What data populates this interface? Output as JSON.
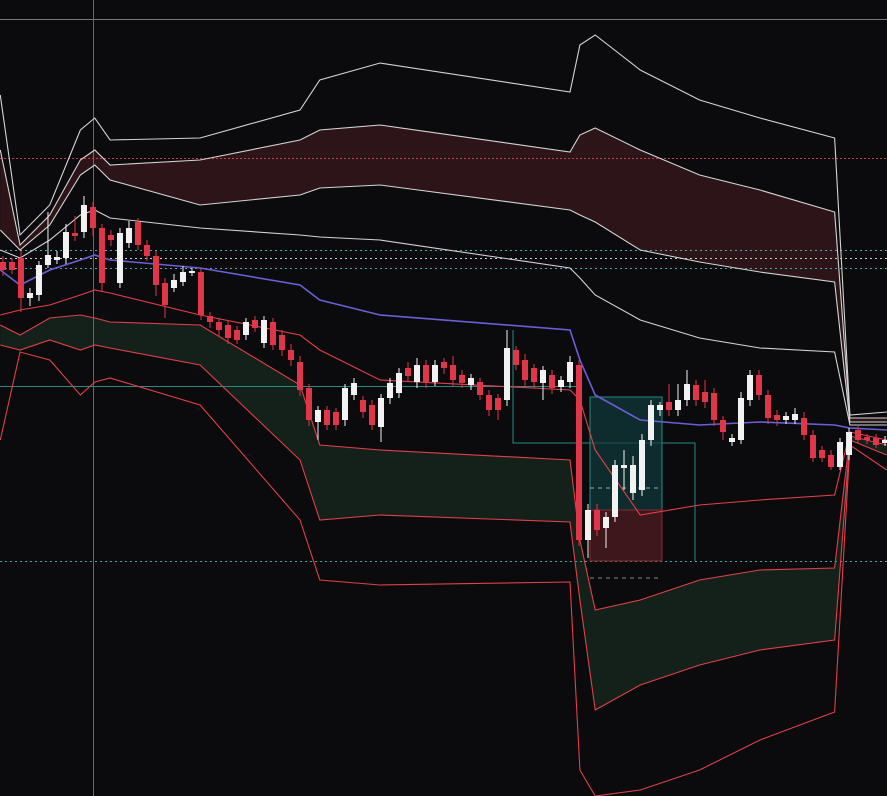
{
  "chart_data": {
    "type": "candlestick",
    "xlim": [
      -0.33,
      98.22
    ],
    "ylim": [
      0,
      796
    ],
    "up_color": "#f2f2f2",
    "down_color": "#e0364a",
    "open": [
      534,
      534,
      538,
      498,
      501,
      531,
      536,
      538,
      563,
      564,
      589,
      568,
      561,
      513,
      553,
      574,
      551,
      540,
      513,
      508,
      514,
      523,
      524,
      480,
      474,
      471,
      466,
      461,
      476,
      453,
      474,
      461,
      446,
      434,
      408,
      374,
      386,
      384,
      376,
      401,
      396,
      391,
      369,
      398,
      403,
      428,
      414,
      431,
      414,
      434,
      431,
      421,
      411,
      414,
      401,
      398,
      396,
      446,
      436,
      428,
      413,
      421,
      409,
      414,
      431,
      256,
      286,
      268,
      279,
      328,
      303,
      306,
      356,
      386,
      394,
      386,
      396,
      411,
      404,
      403,
      376,
      354,
      356,
      396,
      421,
      401,
      381,
      376,
      376,
      378,
      361,
      346,
      341,
      329,
      341,
      366,
      359,
      358,
      353
    ],
    "high": [
      540,
      538,
      545,
      508,
      535,
      584,
      545,
      572,
      580,
      600,
      594,
      572,
      566,
      568,
      575,
      578,
      556,
      545,
      518,
      522,
      530,
      528,
      528,
      484,
      478,
      476,
      470,
      478,
      480,
      480,
      478,
      466,
      452,
      440,
      412,
      390,
      390,
      388,
      412,
      418,
      400,
      396,
      402,
      418,
      428,
      434,
      438,
      436,
      436,
      438,
      440,
      426,
      422,
      418,
      406,
      402,
      466,
      450,
      442,
      432,
      430,
      426,
      420,
      440,
      436,
      292,
      292,
      284,
      336,
      346,
      340,
      362,
      396,
      394,
      412,
      412,
      426,
      416,
      416,
      408,
      380,
      362,
      404,
      426,
      426,
      406,
      386,
      384,
      388,
      384,
      366,
      350,
      346,
      358,
      368,
      370,
      362,
      362,
      360
    ],
    "low": [
      520,
      522,
      484,
      490,
      495,
      528,
      532,
      532,
      555,
      558,
      560,
      505,
      550,
      508,
      548,
      546,
      535,
      500,
      478,
      504,
      510,
      520,
      476,
      468,
      460,
      452,
      452,
      456,
      464,
      448,
      446,
      440,
      430,
      400,
      370,
      356,
      366,
      366,
      370,
      396,
      378,
      366,
      354,
      392,
      398,
      414,
      408,
      408,
      410,
      422,
      410,
      408,
      406,
      396,
      380,
      376,
      390,
      426,
      410,
      408,
      396,
      402,
      404,
      408,
      250,
      238,
      260,
      248,
      274,
      306,
      296,
      300,
      350,
      380,
      380,
      380,
      390,
      390,
      388,
      370,
      356,
      350,
      352,
      390,
      396,
      372,
      370,
      372,
      372,
      356,
      334,
      334,
      326,
      326,
      336,
      352,
      352,
      348,
      350
    ],
    "close": [
      526,
      526,
      498,
      503,
      531,
      541,
      539,
      564,
      560,
      591,
      568,
      513,
      556,
      563,
      568,
      551,
      540,
      511,
      491,
      516,
      524,
      525,
      481,
      474,
      466,
      458,
      456,
      474,
      468,
      476,
      451,
      446,
      436,
      406,
      376,
      386,
      371,
      371,
      408,
      413,
      384,
      371,
      398,
      413,
      423,
      420,
      431,
      413,
      431,
      428,
      416,
      413,
      418,
      401,
      386,
      386,
      448,
      431,
      416,
      414,
      426,
      408,
      416,
      434,
      256,
      286,
      266,
      279,
      331,
      331,
      331,
      356,
      391,
      391,
      386,
      396,
      412,
      396,
      394,
      376,
      364,
      358,
      398,
      421,
      401,
      378,
      376,
      380,
      382,
      361,
      338,
      338,
      329,
      354,
      364,
      356,
      356,
      351,
      356
    ],
    "band_x": [
      -0.3,
      1.9,
      5.2,
      8.6,
      10.2,
      11.9,
      21.9,
      33,
      35.2,
      41.9,
      63,
      64.1,
      65.8,
      70.8,
      77.4,
      84.1,
      92.4,
      94.1,
      98.2
    ],
    "series": [
      {
        "color": "#d4d4d4",
        "values": [
          701,
          561,
          591,
          666,
          678,
          656,
          658,
          686,
          716,
          733,
          704,
          751,
          761,
          726,
          696,
          678,
          658,
          381,
          384
        ]
      },
      {
        "color": "#d4d4d4",
        "values": [
          646,
          551,
          581,
          636,
          646,
          631,
          636,
          656,
          666,
          671,
          644,
          661,
          668,
          646,
          621,
          606,
          584,
          378,
          378
        ]
      },
      {
        "color": "#d4d4d4",
        "values": [
          566,
          546,
          571,
          621,
          631,
          616,
          591,
          601,
          608,
          611,
          586,
          581,
          574,
          546,
          534,
          524,
          514,
          374,
          374
        ]
      },
      {
        "color": "#d4d4d4",
        "values": [
          546,
          538,
          556,
          581,
          586,
          578,
          568,
          561,
          559,
          556,
          528,
          518,
          501,
          476,
          458,
          448,
          444,
          371,
          371
        ]
      },
      {
        "color": "#6b5fd6",
        "values": [
          526,
          511,
          526,
          536,
          541,
          536,
          528,
          511,
          496,
          481,
          466,
          436,
          401,
          376,
          371,
          374,
          371,
          368,
          366
        ]
      },
      {
        "color": "#e0404a",
        "values": [
          481,
          486,
          491,
          501,
          506,
          503,
          481,
          461,
          446,
          416,
          406,
          396,
          346,
          281,
          291,
          296,
          301,
          364,
          356
        ]
      },
      {
        "color": "#e0404a",
        "values": [
          471,
          461,
          478,
          481,
          478,
          474,
          471,
          411,
          351,
          346,
          336,
          256,
          186,
          196,
          216,
          226,
          228,
          360,
          351
        ]
      },
      {
        "color": "#e0404a",
        "values": [
          451,
          446,
          456,
          446,
          451,
          448,
          431,
          336,
          276,
          281,
          274,
          196,
          86,
          111,
          131,
          146,
          156,
          356,
          341
        ]
      },
      {
        "color": "#e0404a",
        "values": [
          356,
          444,
          436,
          401,
          414,
          418,
          391,
          276,
          216,
          211,
          214,
          26,
          0,
          6,
          26,
          56,
          84,
          351,
          326
        ]
      }
    ],
    "fills": [
      {
        "color": "#2d1418",
        "series": [
          1,
          2
        ]
      },
      {
        "color": "#14211a",
        "series": [
          6,
          7
        ]
      }
    ]
  }
}
